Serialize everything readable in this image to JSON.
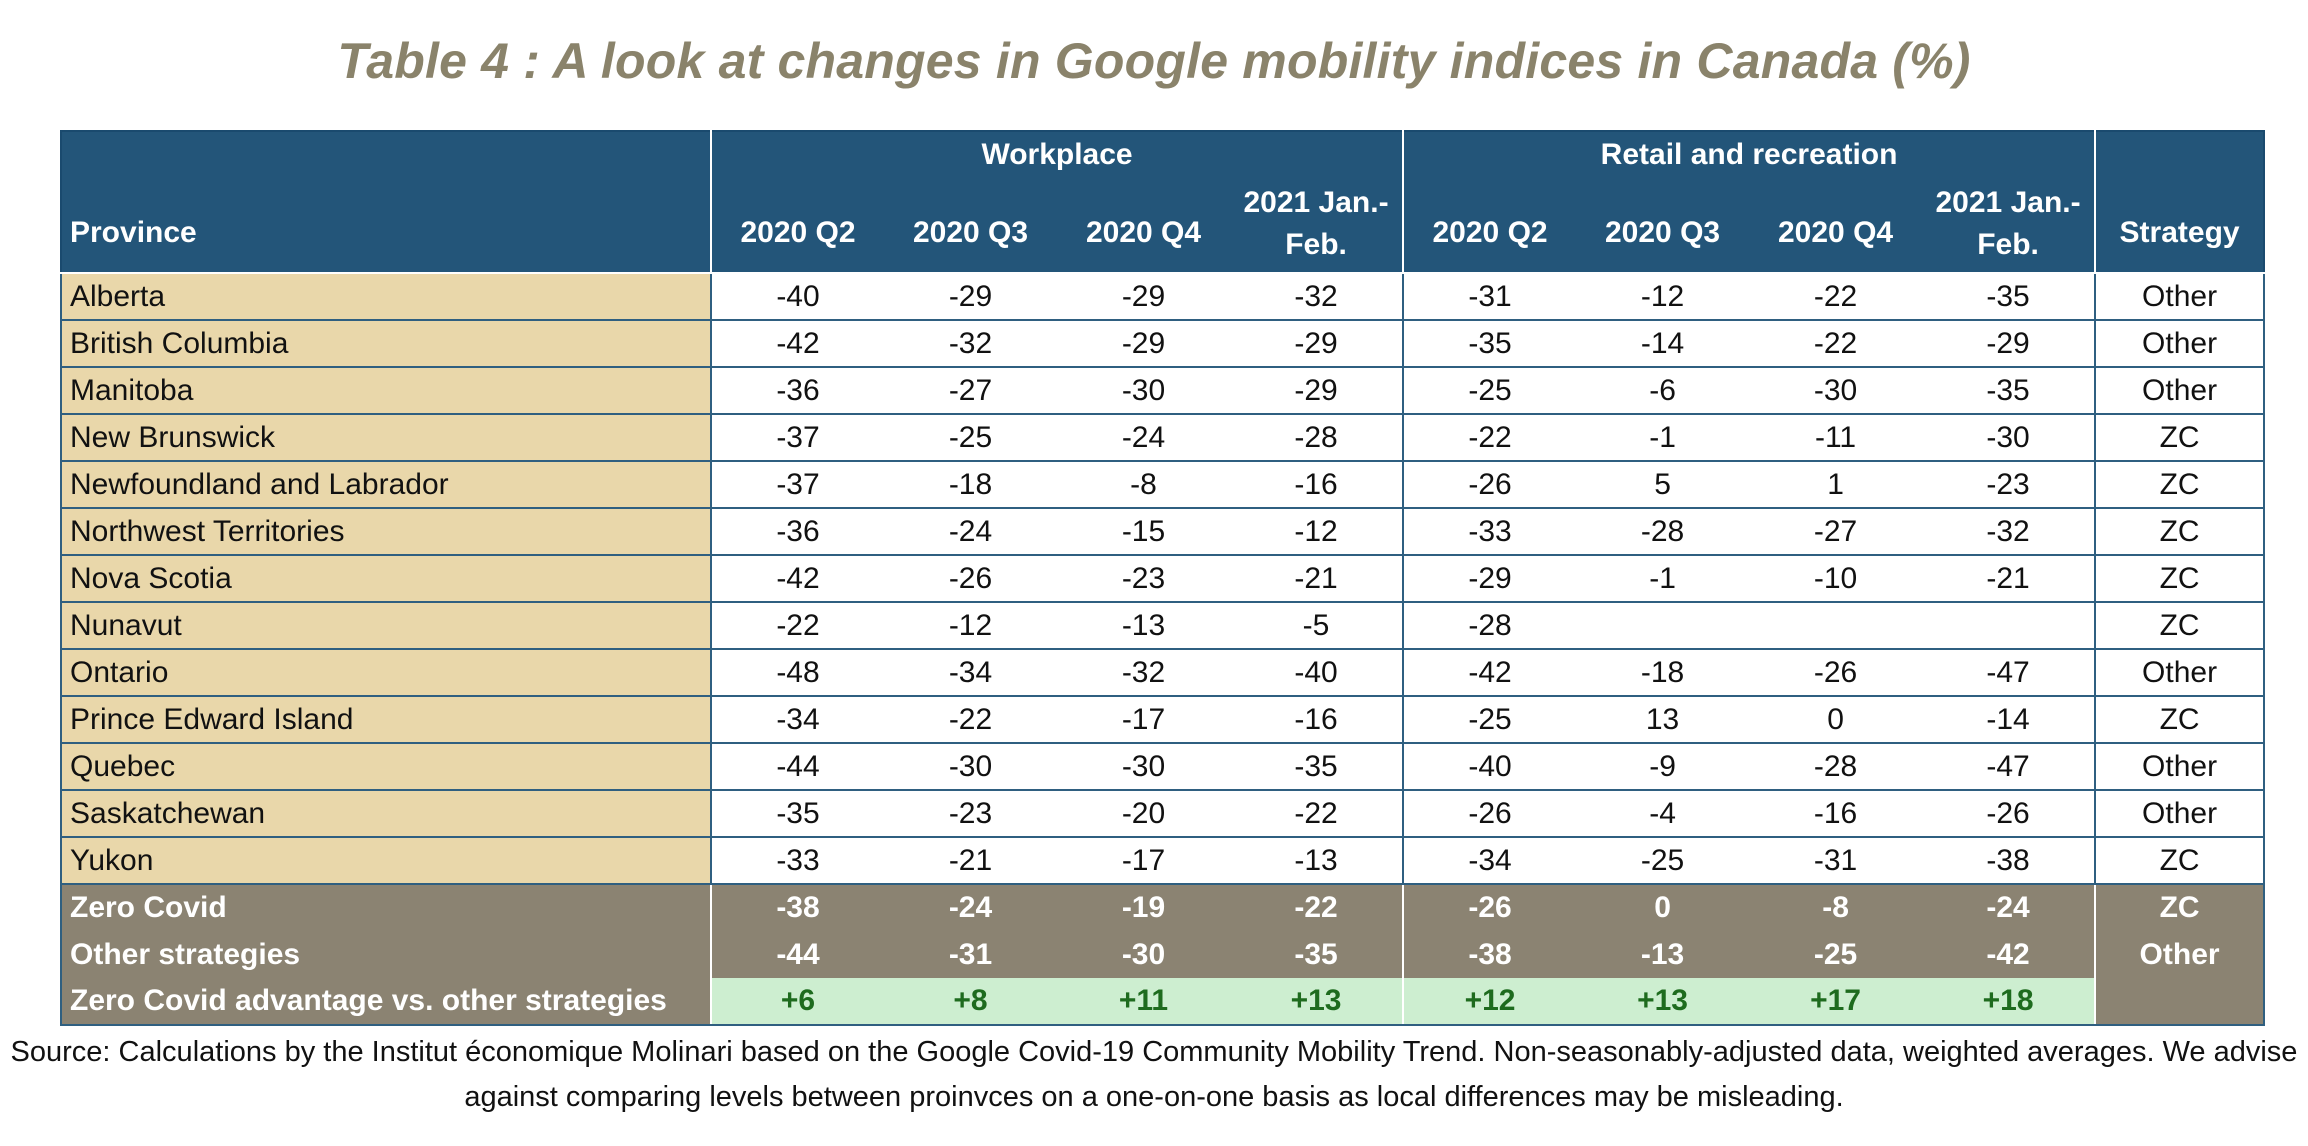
{
  "title": "Table 4 : A look at changes in Google mobility indices in Canada (%)",
  "header": {
    "province_label": "Province",
    "strategy_label": "Strategy",
    "groups": [
      "Workplace",
      "Retail and recreation"
    ],
    "periods": [
      "2020 Q2",
      "2020 Q3",
      "2020 Q4",
      "2021 Jan.-Feb."
    ]
  },
  "rows": [
    {
      "province": "Alberta",
      "values": [
        "-40",
        "-29",
        "-29",
        "-32",
        "-31",
        "-12",
        "-22",
        "-35"
      ],
      "strategy": "Other"
    },
    {
      "province": "British Columbia",
      "values": [
        "-42",
        "-32",
        "-29",
        "-29",
        "-35",
        "-14",
        "-22",
        "-29"
      ],
      "strategy": "Other"
    },
    {
      "province": "Manitoba",
      "values": [
        "-36",
        "-27",
        "-30",
        "-29",
        "-25",
        "-6",
        "-30",
        "-35"
      ],
      "strategy": "Other"
    },
    {
      "province": "New Brunswick",
      "values": [
        "-37",
        "-25",
        "-24",
        "-28",
        "-22",
        "-1",
        "-11",
        "-30"
      ],
      "strategy": "ZC"
    },
    {
      "province": "Newfoundland and Labrador",
      "values": [
        "-37",
        "-18",
        "-8",
        "-16",
        "-26",
        "5",
        "1",
        "-23"
      ],
      "strategy": "ZC"
    },
    {
      "province": "Northwest Territories",
      "values": [
        "-36",
        "-24",
        "-15",
        "-12",
        "-33",
        "-28",
        "-27",
        "-32"
      ],
      "strategy": "ZC"
    },
    {
      "province": "Nova Scotia",
      "values": [
        "-42",
        "-26",
        "-23",
        "-21",
        "-29",
        "-1",
        "-10",
        "-21"
      ],
      "strategy": "ZC"
    },
    {
      "province": "Nunavut",
      "values": [
        "-22",
        "-12",
        "-13",
        "-5",
        "-28",
        "",
        "",
        ""
      ],
      "strategy": "ZC"
    },
    {
      "province": "Ontario",
      "values": [
        "-48",
        "-34",
        "-32",
        "-40",
        "-42",
        "-18",
        "-26",
        "-47"
      ],
      "strategy": "Other"
    },
    {
      "province": "Prince Edward Island",
      "values": [
        "-34",
        "-22",
        "-17",
        "-16",
        "-25",
        "13",
        "0",
        "-14"
      ],
      "strategy": "ZC"
    },
    {
      "province": "Quebec",
      "values": [
        "-44",
        "-30",
        "-30",
        "-35",
        "-40",
        "-9",
        "-28",
        "-47"
      ],
      "strategy": "Other"
    },
    {
      "province": "Saskatchewan",
      "values": [
        "-35",
        "-23",
        "-20",
        "-22",
        "-26",
        "-4",
        "-16",
        "-26"
      ],
      "strategy": "Other"
    },
    {
      "province": "Yukon",
      "values": [
        "-33",
        "-21",
        "-17",
        "-13",
        "-34",
        "-25",
        "-31",
        "-38"
      ],
      "strategy": "ZC"
    }
  ],
  "summary": [
    {
      "label": "Zero Covid",
      "values": [
        "-38",
        "-24",
        "-19",
        "-22",
        "-26",
        "0",
        "-8",
        "-24"
      ],
      "strategy": "ZC"
    },
    {
      "label": "Other strategies",
      "values": [
        "-44",
        "-31",
        "-30",
        "-35",
        "-38",
        "-13",
        "-25",
        "-42"
      ],
      "strategy": "Other"
    }
  ],
  "advantage": {
    "label": "Zero Covid advantage vs. other strategies",
    "values": [
      "+6",
      "+8",
      "+11",
      "+13",
      "+12",
      "+13",
      "+17",
      "+18"
    ]
  },
  "source": "Source: Calculations by the Institut économique Molinari based on the Google Covid-19 Community Mobility Trend. Non-seasonably-adjusted data, weighted averages. We advise against comparing levels between proinvces on a one-on-one basis as local differences may be misleading.",
  "colors": {
    "header_bg": "#235579",
    "province_bg": "#e9d7aa",
    "summary_bg": "#8b8372",
    "advantage_bg": "#cdeed0",
    "advantage_text": "#1e6b1e",
    "title_color": "#8a836b"
  }
}
